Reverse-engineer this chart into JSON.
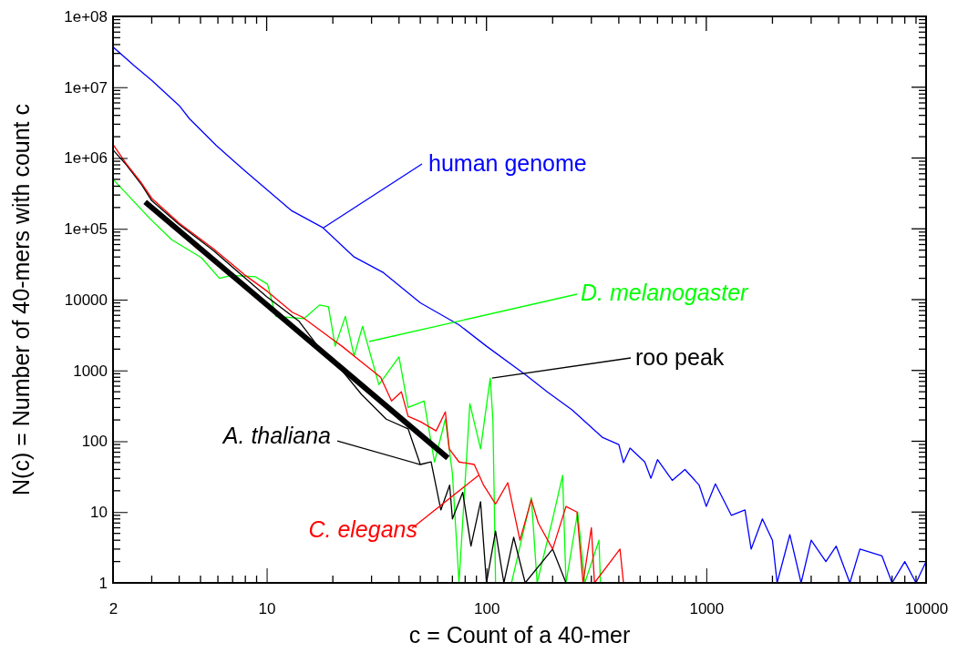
{
  "chart_data": {
    "type": "line",
    "xlabel": "c = Count of a 40-mer",
    "ylabel": "N(c) = Number of 40-mers with count c",
    "log": "xy",
    "xlim": [
      2,
      10000
    ],
    "ylim": [
      1,
      100000000
    ],
    "xticks": [
      2,
      10,
      100,
      1000,
      10000
    ],
    "yticks": [
      1,
      10,
      100,
      1000,
      10000,
      {
        "value": 100000,
        "label": "1e+05"
      },
      {
        "value": 1000000,
        "label": "1e+06"
      },
      {
        "value": 10000000,
        "label": "1e+07"
      },
      {
        "value": 100000000,
        "label": "1e+08"
      }
    ],
    "grid": false,
    "annotations": [
      {
        "text": "roo peak",
        "x": 104,
        "y": 780
      }
    ],
    "series": [
      {
        "name": "human genome",
        "color": "#0000ff",
        "x": [
          2,
          2.5,
          3,
          4,
          4.45,
          5.9,
          8,
          10,
          13,
          18,
          25,
          34,
          50,
          75,
          100,
          151,
          189,
          245,
          336,
          400,
          420,
          450,
          525,
          560,
          600,
          700,
          800,
          928,
          1000,
          1100,
          1300,
          1500,
          1600,
          1800,
          2000,
          2100,
          2400,
          2700,
          3000,
          3500,
          3900,
          4500,
          5000,
          6300,
          7000,
          8000,
          9000,
          10000
        ],
        "values": [
          37000000,
          20000000,
          12500000,
          5500000,
          3600000,
          1500000,
          650000,
          360000,
          180000,
          104000,
          40000,
          24000,
          9000,
          4400,
          2200,
          860,
          500,
          277,
          114,
          90,
          50,
          80,
          51,
          30,
          55,
          28,
          40,
          24,
          12,
          25,
          9,
          10.7,
          3,
          8,
          4,
          1,
          4.8,
          1,
          4,
          2,
          3.3,
          1,
          3,
          2.4,
          1,
          2,
          1,
          2
        ]
      },
      {
        "name": "D. melanogaster",
        "color": "#00ff00",
        "x": [
          2,
          2.94,
          3.7,
          5.05,
          6.1,
          6.9,
          8.9,
          10.1,
          11,
          14.8,
          17.4,
          19.1,
          20.5,
          22.8,
          25,
          27.3,
          32.4,
          40,
          44,
          52,
          58,
          65,
          70,
          75,
          84,
          94,
          104,
          107,
          110,
          130,
          160,
          170,
          200,
          222,
          230,
          260,
          280,
          325,
          330
        ],
        "values": [
          500000,
          140000,
          70000,
          39000,
          20000,
          22000,
          21000,
          16500,
          5800,
          5400,
          8400,
          7900,
          2200,
          5800,
          1600,
          4200,
          630,
          1550,
          300,
          370,
          51,
          205,
          35,
          1,
          340,
          78,
          780,
          200,
          1,
          1,
          16,
          1,
          8,
          33,
          1,
          10,
          1,
          4,
          1
        ]
      },
      {
        "name": "A. thaliana",
        "color": "#000000",
        "x": [
          2,
          2.3,
          2.7,
          3,
          4,
          5.7,
          8,
          10,
          14,
          17.5,
          22,
          27,
          35,
          44,
          50,
          56,
          62,
          68,
          70,
          78,
          85,
          94,
          100,
          110,
          120,
          133,
          150,
          200,
          230
        ],
        "values": [
          1300000,
          800000,
          420000,
          250000,
          115000,
          50000,
          20000,
          11000,
          5000,
          2000,
          1000,
          460,
          205,
          150,
          47,
          51,
          10.7,
          24,
          8,
          19,
          3.3,
          14,
          1,
          5.4,
          1,
          4.4,
          1,
          3,
          1
        ]
      },
      {
        "name": "C. elegans",
        "color": "#ff0000",
        "x": [
          2,
          2.3,
          2.67,
          3,
          4,
          5.7,
          8,
          10.1,
          13.1,
          14.5,
          19.2,
          22,
          28,
          33,
          37,
          41,
          44,
          50,
          59,
          65,
          67.7,
          75,
          88,
          97,
          110,
          125,
          142,
          160,
          172,
          200,
          230,
          258,
          275,
          300,
          310,
          405,
          420
        ],
        "values": [
          1550000,
          830000,
          460000,
          270000,
          120000,
          53000,
          22000,
          13000,
          6600,
          5700,
          3000,
          2200,
          1200,
          800,
          370,
          500,
          225,
          190,
          140,
          260,
          78,
          51,
          47,
          24,
          13,
          26,
          4,
          15,
          7,
          3,
          12,
          10,
          1,
          6,
          1,
          3,
          1
        ]
      },
      {
        "type": "line",
        "color": "#000000",
        "x": [
          2.8,
          66.7
        ],
        "values": [
          240000,
          58
        ]
      }
    ]
  }
}
